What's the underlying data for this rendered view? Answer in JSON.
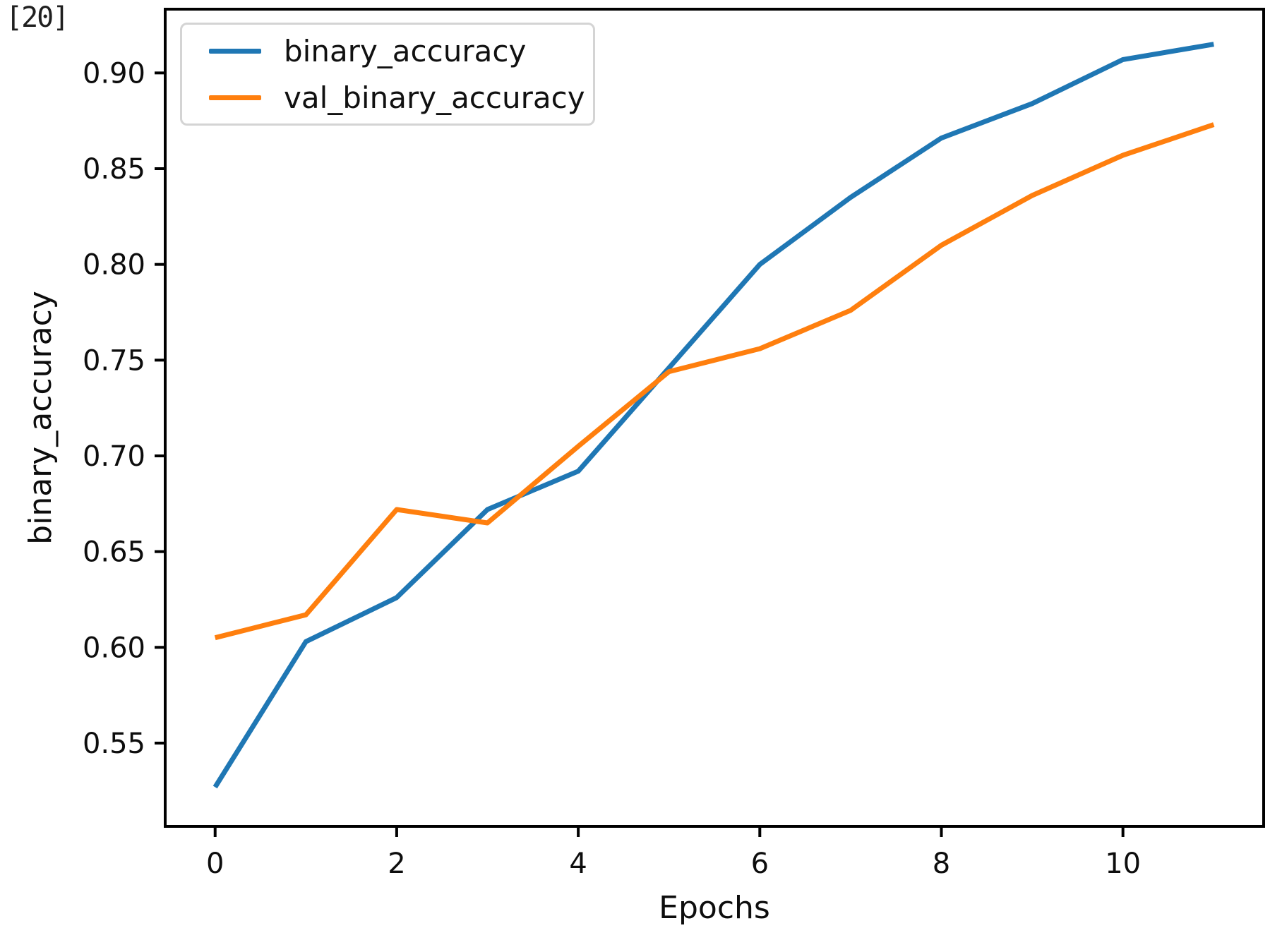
{
  "cell": {
    "execution_label": "[20]"
  },
  "chart_data": {
    "type": "line",
    "title": "",
    "xlabel": "Epochs",
    "ylabel": "binary_accuracy",
    "x": [
      0,
      1,
      2,
      3,
      4,
      5,
      6,
      7,
      8,
      9,
      10,
      11
    ],
    "series": [
      {
        "name": "binary_accuracy",
        "color": "#1f77b4",
        "values": [
          0.527,
          0.603,
          0.626,
          0.672,
          0.692,
          0.746,
          0.8,
          0.835,
          0.866,
          0.884,
          0.907,
          0.915
        ]
      },
      {
        "name": "val_binary_accuracy",
        "color": "#ff7f0e",
        "values": [
          0.605,
          0.617,
          0.672,
          0.665,
          0.705,
          0.744,
          0.756,
          0.776,
          0.81,
          0.836,
          0.857,
          0.873
        ]
      }
    ],
    "xticks": [
      "0",
      "2",
      "4",
      "6",
      "8",
      "10"
    ],
    "yticks": [
      "0.55",
      "0.60",
      "0.65",
      "0.70",
      "0.75",
      "0.80",
      "0.85",
      "0.90"
    ],
    "xlim": [
      -0.55,
      11.55
    ],
    "ylim": [
      0.5065,
      0.9333
    ],
    "grid": false,
    "legend_position": "upper left"
  }
}
